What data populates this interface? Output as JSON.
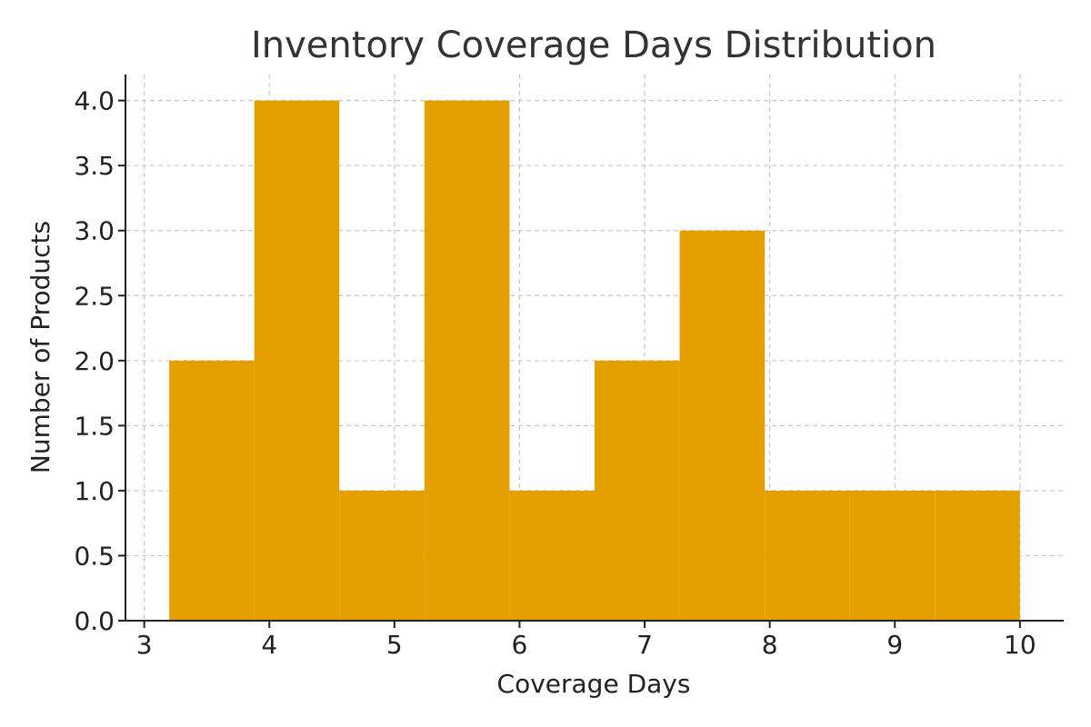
{
  "chart_data": {
    "type": "bar",
    "title": "Inventory Coverage Days Distribution",
    "xlabel": "Coverage Days",
    "ylabel": "Number of Products",
    "bar_color": "#E69F00",
    "grid": true,
    "xlim": [
      2.85,
      10.35
    ],
    "ylim": [
      0,
      4.2
    ],
    "xticks": [
      3,
      4,
      5,
      6,
      7,
      8,
      9,
      10
    ],
    "yticks": [
      "0.0",
      "0.5",
      "1.0",
      "1.5",
      "2.0",
      "2.5",
      "3.0",
      "3.5",
      "4.0"
    ],
    "bin_edges": [
      3.2,
      3.88,
      4.56,
      5.24,
      5.92,
      6.6,
      7.28,
      7.96,
      8.64,
      9.32,
      10.0
    ],
    "values": [
      2,
      4,
      1,
      4,
      1,
      2,
      3,
      1,
      1,
      1
    ]
  }
}
